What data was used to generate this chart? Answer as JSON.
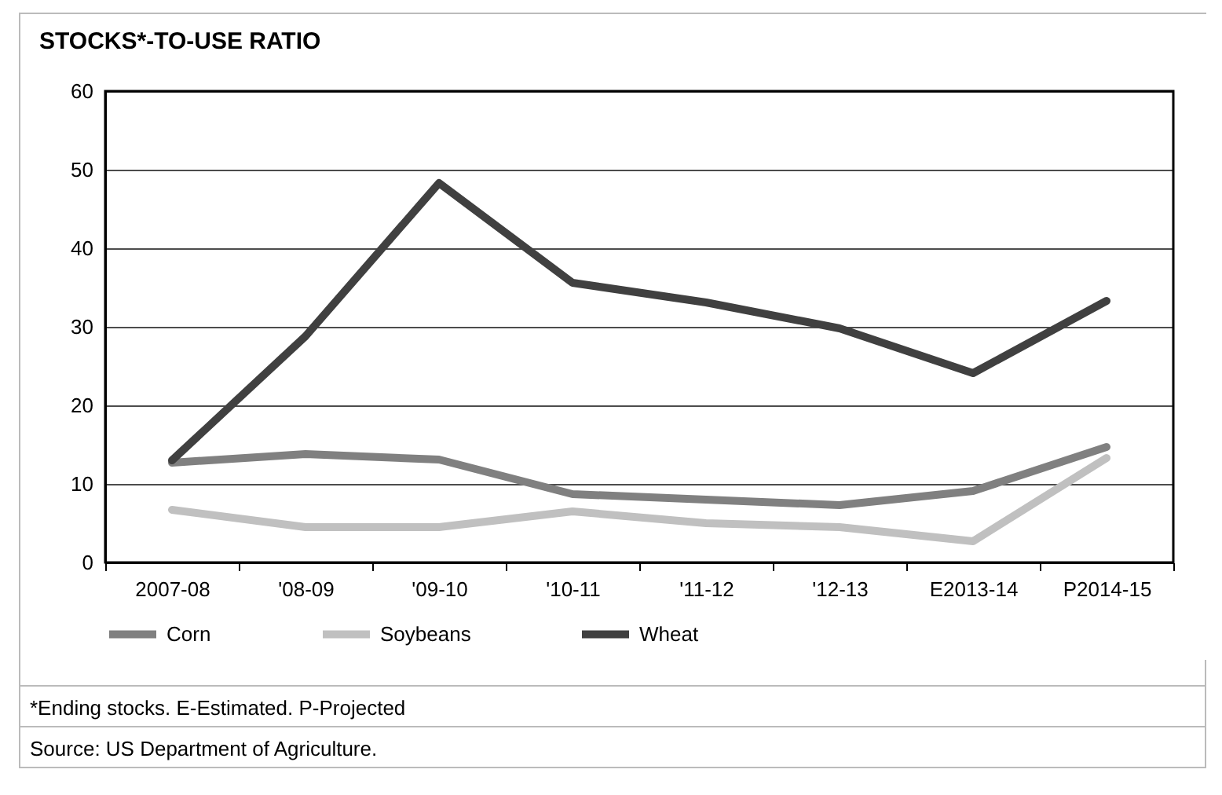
{
  "chart_data": {
    "type": "line",
    "title": "STOCKS*-TO-USE RATIO",
    "categories": [
      "2007-08",
      "'08-09",
      "'09-10",
      "'10-11",
      "'11-12",
      "'12-13",
      "E2013-14",
      "P2014-15"
    ],
    "series": [
      {
        "name": "Corn",
        "color": "#808080",
        "values": [
          12.7,
          13.8,
          13.1,
          8.7,
          8.0,
          7.3,
          9.1,
          14.7
        ]
      },
      {
        "name": "Soybeans",
        "color": "#c0c0c0",
        "values": [
          6.7,
          4.5,
          4.5,
          6.5,
          5.0,
          4.5,
          2.7,
          13.3
        ]
      },
      {
        "name": "Wheat",
        "color": "#404040",
        "values": [
          13.0,
          28.8,
          48.3,
          35.6,
          33.1,
          29.8,
          24.1,
          33.3
        ]
      }
    ],
    "ylim": [
      0,
      60
    ],
    "yticks": [
      0,
      10,
      20,
      30,
      40,
      50,
      60
    ],
    "grid": "y",
    "legend": "bottom",
    "line_style": "solid",
    "marker": "none",
    "annotations": [
      "*Ending stocks. E-Estimated. P-Projected",
      "Source: US Department of Agriculture."
    ]
  }
}
